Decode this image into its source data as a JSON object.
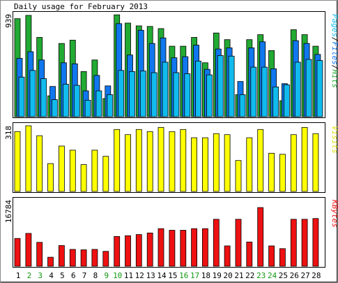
{
  "chart_data": {
    "type": "bar",
    "title": "Daily usage for February 2013",
    "categories": [
      "1",
      "2",
      "3",
      "4",
      "5",
      "6",
      "7",
      "8",
      "9",
      "10",
      "11",
      "12",
      "13",
      "14",
      "15",
      "16",
      "17",
      "18",
      "19",
      "20",
      "21",
      "22",
      "23",
      "24",
      "25",
      "26",
      "27",
      "28"
    ],
    "weekend_days": [
      "2",
      "3",
      "9",
      "10",
      "16",
      "17",
      "23",
      "24"
    ],
    "colors": {
      "hits": "#22aa33",
      "files": "#1177ee",
      "pages": "#11bbee",
      "visits": "#ffff00",
      "kbytes": "#ee1111",
      "weekday_label": "#000000",
      "weekend_label": "#119911",
      "pages_legend": "#11bbee",
      "files_legend": "#1177ee",
      "hits_legend": "#22aa33",
      "visits_legend": "#dddd00",
      "kbytes_legend": "#ee1111"
    },
    "panels": {
      "hits": {
        "ymax_label": "939",
        "ymax": 939,
        "legend": [
          {
            "text": "Pages",
            "color_key": "pages_legend"
          },
          {
            "text": "/",
            "color_key": "weekday_label"
          },
          {
            "text": "Files",
            "color_key": "files_legend"
          },
          {
            "text": "/",
            "color_key": "weekday_label"
          },
          {
            "text": "Hits",
            "color_key": "hits_legend"
          }
        ],
        "series": [
          {
            "name": "Hits",
            "values": [
              890,
              920,
              720,
              190,
              665,
              695,
              410,
              515,
              165,
              925,
              850,
              825,
              820,
              800,
              640,
              640,
              720,
              490,
              760,
              700,
              200,
              700,
              745,
              600,
              145,
              790,
              745,
              640
            ]
          },
          {
            "name": "Files",
            "values": [
              530,
              590,
              515,
              275,
              490,
              480,
              235,
              375,
              280,
              845,
              560,
              785,
              665,
              715,
              535,
              545,
              650,
              430,
              615,
              625,
              320,
              625,
              680,
              435,
              300,
              690,
              665,
              565
            ]
          },
          {
            "name": "Pages",
            "values": [
              360,
              420,
              345,
              155,
              295,
              285,
              150,
              235,
              200,
              420,
              410,
              415,
              400,
              495,
              400,
              390,
              505,
              380,
              555,
              550,
              200,
              450,
              450,
              270,
              290,
              495,
              520,
              510
            ]
          }
        ]
      },
      "visits": {
        "ymax_label": "318",
        "ymax": 318,
        "legend": [
          {
            "text": "Visits",
            "color_key": "visits_legend"
          }
        ],
        "series": [
          {
            "name": "Visits",
            "values": [
              290,
              318,
              270,
              135,
              220,
              200,
              130,
              200,
              170,
              300,
              275,
              300,
              290,
              310,
              290,
              300,
              260,
              260,
              280,
              275,
              150,
              260,
              300,
              185,
              180,
              275,
              310,
              280
            ]
          }
        ]
      },
      "kbytes": {
        "ymax_label": "16784",
        "ymax": 16784,
        "legend": [
          {
            "text": "KBytes",
            "color_key": "kbytes_legend"
          }
        ],
        "series": [
          {
            "name": "KBytes",
            "values": [
              7100,
              8400,
              6100,
              2300,
              5300,
              4300,
              4200,
              4300,
              3800,
              7600,
              7800,
              8100,
              8500,
              9600,
              9200,
              9200,
              9600,
              9600,
              12000,
              5200,
              12000,
              6200,
              15000,
              5200,
              4500,
              12000,
              12000,
              12200
            ]
          }
        ]
      }
    }
  }
}
